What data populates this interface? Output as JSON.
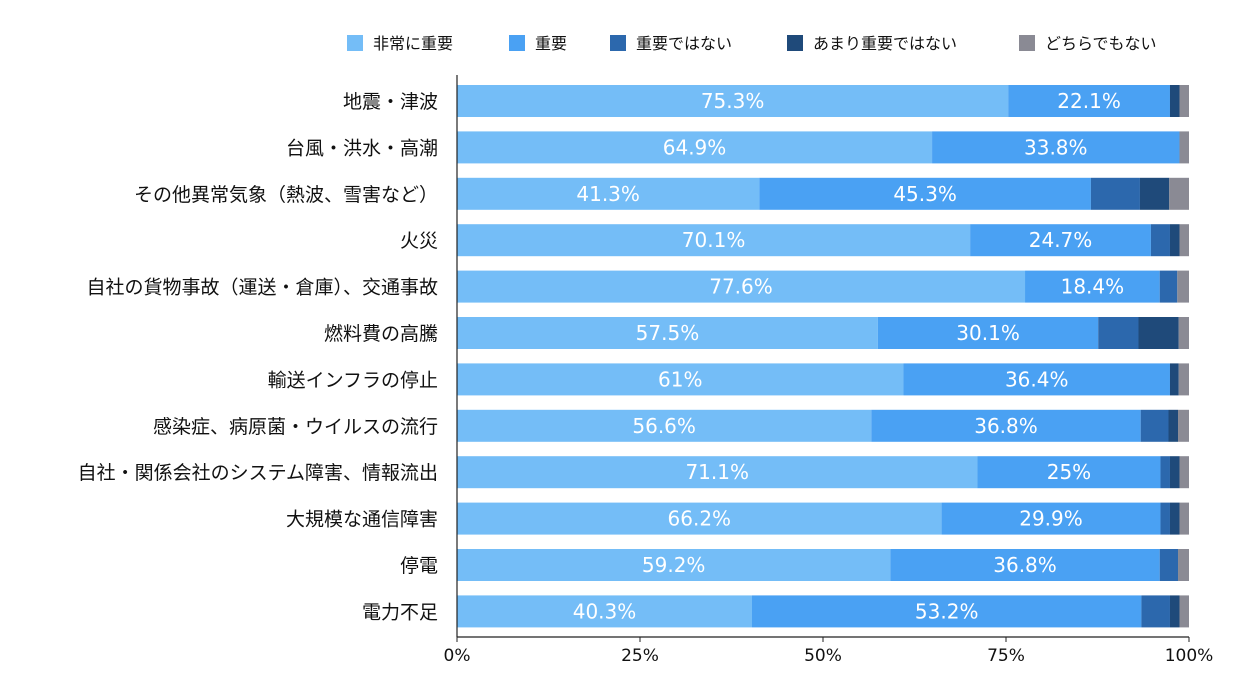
{
  "chart_data": {
    "type": "bar",
    "orientation": "horizontal",
    "stacked": true,
    "title": "",
    "xlabel": "",
    "ylabel": "",
    "xlim": [
      0,
      100
    ],
    "x_ticks": [
      "0%",
      "25%",
      "50%",
      "75%",
      "100%"
    ],
    "grid": false,
    "legend_position": "top",
    "categories": [
      "地震・津波",
      "台風・洪水・高潮",
      "その他異常気象（熱波、雪害など）",
      "火災",
      "自社の貨物事故（運送・倉庫）、交通事故",
      "燃料費の高騰",
      "輸送インフラの停止",
      "感染症、病原菌・ウイルスの流行",
      "自社・関係会社のシステム障害、情報流出",
      "大規模な通信障害",
      "停電",
      "電力不足"
    ],
    "series": [
      {
        "name": "非常に重要",
        "color": "#74bdf7",
        "values": [
          75.3,
          64.9,
          41.3,
          70.1,
          77.6,
          57.5,
          61,
          56.6,
          71.1,
          66.2,
          59.2,
          40.3
        ],
        "labels": [
          "75.3%",
          "64.9%",
          "41.3%",
          "70.1%",
          "77.6%",
          "57.5%",
          "61%",
          "56.6%",
          "71.1%",
          "66.2%",
          "59.2%",
          "40.3%"
        ]
      },
      {
        "name": "重要",
        "color": "#4aa1f3",
        "values": [
          22.1,
          33.8,
          45.3,
          24.7,
          18.4,
          30.1,
          36.4,
          36.8,
          25,
          29.9,
          36.8,
          53.2
        ],
        "labels": [
          "22.1%",
          "33.8%",
          "45.3%",
          "24.7%",
          "18.4%",
          "30.1%",
          "36.4%",
          "36.8%",
          "25%",
          "29.9%",
          "36.8%",
          "53.2%"
        ]
      },
      {
        "name": "重要ではない",
        "color": "#2c68ad",
        "values": [
          0,
          0,
          6.7,
          2.6,
          2.4,
          5.5,
          0,
          3.8,
          1.3,
          1.3,
          2.5,
          3.9
        ]
      },
      {
        "name": "あまり重要ではない",
        "color": "#1f4a7a",
        "values": [
          1.3,
          0,
          4,
          1.3,
          0,
          5.5,
          1.2,
          1.3,
          1.3,
          1.3,
          0,
          1.3
        ]
      },
      {
        "name": "どちらでもない",
        "color": "#8a8a94",
        "values": [
          1.3,
          1.3,
          2.7,
          1.3,
          1.6,
          1.4,
          1.4,
          1.5,
          1.3,
          1.3,
          1.5,
          1.3
        ]
      }
    ]
  }
}
